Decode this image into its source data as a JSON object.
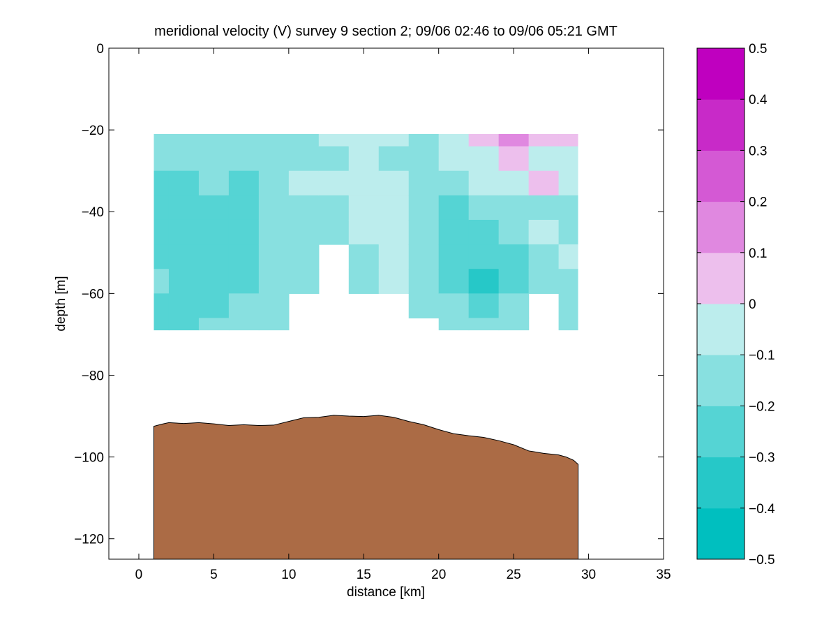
{
  "chart_data": {
    "type": "heatmap",
    "title": "meridional velocity (V) survey 9 section 2; 09/06 02:46 to 09/06 05:21 GMT",
    "xlabel": "distance [km]",
    "ylabel": "depth [m]",
    "xlim": [
      -2,
      35
    ],
    "ylim": [
      -125,
      0
    ],
    "xticks": [
      0,
      5,
      10,
      15,
      20,
      25,
      30,
      35
    ],
    "yticks": [
      0,
      -20,
      -40,
      -60,
      -80,
      -100,
      -120
    ],
    "grid": false,
    "data_extent": {
      "x": [
        1.0,
        29.3
      ],
      "depth": [
        -21,
        -69
      ]
    },
    "velocity_field": [
      {
        "x": 1,
        "v": [
          -0.18,
          -0.17,
          -0.22,
          -0.24,
          -0.26,
          -0.23,
          -0.2,
          -0.25,
          -0.22
        ]
      },
      {
        "x": 3,
        "v": [
          -0.15,
          -0.18,
          -0.21,
          -0.24,
          -0.27,
          -0.25,
          -0.22,
          -0.26,
          -0.24
        ]
      },
      {
        "x": 5,
        "v": [
          -0.12,
          -0.16,
          -0.19,
          -0.21,
          -0.24,
          -0.27,
          -0.24,
          -0.22,
          -0.18
        ]
      },
      {
        "x": 7,
        "v": [
          -0.15,
          -0.18,
          -0.22,
          -0.25,
          -0.28,
          -0.26,
          -0.23,
          -0.19,
          -0.16
        ]
      },
      {
        "x": 9,
        "v": [
          -0.16,
          -0.19,
          -0.17,
          -0.15,
          -0.18,
          -0.16,
          -0.14,
          -0.17,
          -0.15
        ]
      },
      {
        "x": 11,
        "v": [
          -0.14,
          -0.16,
          -0.1,
          -0.18,
          -0.16,
          -0.14,
          -0.12,
          null,
          null
        ]
      },
      {
        "x": 13,
        "v": [
          -0.1,
          -0.12,
          -0.08,
          -0.16,
          -0.14,
          null,
          null,
          null,
          null
        ]
      },
      {
        "x": 15,
        "v": [
          -0.06,
          -0.08,
          -0.06,
          -0.07,
          -0.08,
          -0.12,
          -0.15,
          null,
          null
        ]
      },
      {
        "x": 17,
        "v": [
          -0.09,
          -0.13,
          -0.06,
          -0.05,
          -0.07,
          -0.04,
          -0.08,
          null,
          null
        ]
      },
      {
        "x": 19,
        "v": [
          -0.14,
          -0.16,
          -0.18,
          -0.14,
          -0.12,
          -0.14,
          -0.16,
          -0.18,
          null
        ]
      },
      {
        "x": 21,
        "v": [
          -0.05,
          -0.08,
          -0.18,
          -0.22,
          -0.26,
          -0.28,
          -0.24,
          -0.2,
          -0.18
        ]
      },
      {
        "x": 23,
        "v": [
          0.04,
          -0.04,
          -0.08,
          -0.14,
          -0.26,
          -0.3,
          -0.38,
          -0.22,
          -0.18
        ]
      },
      {
        "x": 25,
        "v": [
          0.1,
          0.06,
          -0.06,
          -0.12,
          -0.16,
          -0.24,
          -0.22,
          -0.18,
          -0.16
        ]
      },
      {
        "x": 27,
        "v": [
          0.06,
          -0.06,
          0.02,
          -0.12,
          -0.1,
          -0.14,
          -0.16,
          null,
          null
        ]
      },
      {
        "x": 29,
        "v": [
          0.06,
          -0.04,
          -0.06,
          -0.16,
          -0.12,
          -0.1,
          -0.14,
          -0.16,
          -0.15
        ]
      }
    ],
    "depth_levels": [
      -21,
      -27,
      -33,
      -39,
      -45,
      -51,
      -57,
      -63,
      -69
    ],
    "bathymetry": {
      "x": [
        1.0,
        1.5,
        2.0,
        3.0,
        4.0,
        5.0,
        6.0,
        7.0,
        8.0,
        9.0,
        10.0,
        11.0,
        12.0,
        13.0,
        14.0,
        15.0,
        16.0,
        17.0,
        18.0,
        19.0,
        20.0,
        21.0,
        22.0,
        23.0,
        24.0,
        25.0,
        26.0,
        27.0,
        28.0,
        28.5,
        29.0,
        29.3
      ],
      "depth": [
        -92.5,
        -92.0,
        -91.6,
        -91.8,
        -91.6,
        -91.9,
        -92.3,
        -92.1,
        -92.3,
        -92.2,
        -91.3,
        -90.4,
        -90.3,
        -89.8,
        -90.0,
        -90.1,
        -89.8,
        -90.3,
        -91.3,
        -92.1,
        -93.3,
        -94.3,
        -94.8,
        -95.2,
        -96.0,
        -97.0,
        -98.5,
        -99.1,
        -99.5,
        -100.0,
        -100.8,
        -101.8
      ],
      "color": "#ab6b45"
    },
    "colorbar": {
      "levels": [
        -0.5,
        -0.4,
        -0.3,
        -0.2,
        -0.1,
        0,
        0.1,
        0.2,
        0.3,
        0.4,
        0.5
      ],
      "tick_labels": [
        "−0.5",
        "−0.4",
        "−0.3",
        "−0.2",
        "−0.1",
        "0",
        "0.1",
        "0.2",
        "0.3",
        "0.4",
        "0.5"
      ],
      "colors": [
        "#00bfbf",
        "#26c8c8",
        "#55d4d4",
        "#88e0e0",
        "#bceded",
        "#edbfed",
        "#e088e0",
        "#d459d4",
        "#c82ac8",
        "#bf00bf"
      ]
    }
  }
}
